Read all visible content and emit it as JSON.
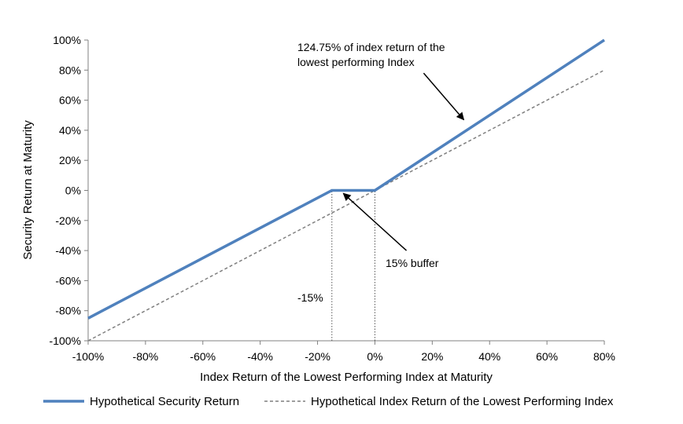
{
  "chart_data": {
    "type": "line",
    "title": "",
    "xlabel": "Index Return of the Lowest Performing Index at Maturity",
    "ylabel": "Security Return at Maturity",
    "xlim": [
      -100,
      80
    ],
    "ylim": [
      -100,
      100
    ],
    "x_ticks": [
      -100,
      -80,
      -60,
      -40,
      -20,
      0,
      20,
      40,
      60,
      80
    ],
    "y_ticks": [
      -100,
      -80,
      -60,
      -40,
      -20,
      0,
      20,
      40,
      60,
      80,
      100
    ],
    "x_tick_labels": [
      "-100%",
      "-80%",
      "-60%",
      "-40%",
      "-20%",
      "0%",
      "20%",
      "40%",
      "60%",
      "80%"
    ],
    "y_tick_labels": [
      "-100%",
      "-80%",
      "-60%",
      "-40%",
      "-20%",
      "0%",
      "20%",
      "40%",
      "60%",
      "80%",
      "100%"
    ],
    "grid": false,
    "legend_position": "bottom",
    "series": [
      {
        "name": "Hypothetical Security Return",
        "style": "solid",
        "color": "#4F81BD",
        "x": [
          -100,
          -15,
          0,
          80
        ],
        "y": [
          -85,
          0,
          0,
          100
        ]
      },
      {
        "name": "Hypothetical Index Return of the Lowest Performing Index",
        "style": "dashed",
        "color": "#7F7F7F",
        "x": [
          -100,
          80
        ],
        "y": [
          -100,
          80
        ]
      }
    ],
    "reference_lines": [
      {
        "x": -15,
        "y_from": -100,
        "y_to": 0
      },
      {
        "x": 0,
        "y_from": -100,
        "y_to": 0
      }
    ],
    "annotations": [
      {
        "lines": [
          "124.75% of index return of the",
          "lowest performing Index"
        ],
        "arrow_from": [
          17,
          78
        ],
        "arrow_to": [
          31,
          47
        ]
      },
      {
        "lines": [
          "15% buffer"
        ],
        "arrow_from": [
          11,
          -40
        ],
        "arrow_to": [
          -11,
          -2
        ]
      },
      {
        "lines": [
          "-15%"
        ],
        "at": [
          -22,
          -72
        ]
      }
    ]
  }
}
